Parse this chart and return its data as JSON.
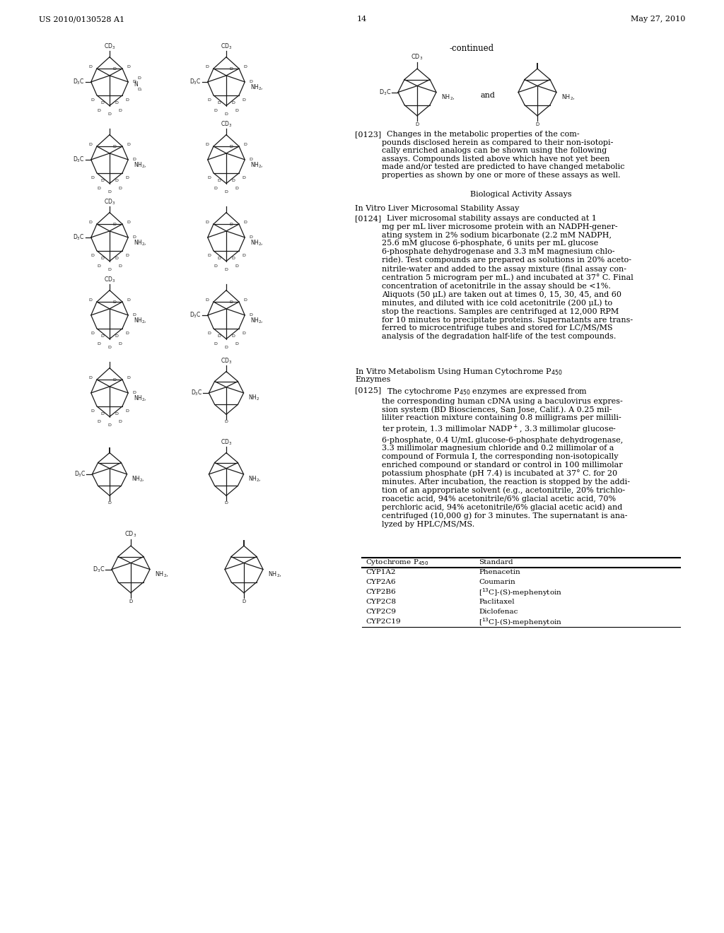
{
  "page_number": "14",
  "patent_number": "US 2010/0130528 A1",
  "patent_date": "May 27, 2010",
  "continued_label": "-continued",
  "background_color": "#ffffff",
  "text_color": "#000000",
  "table": {
    "col1_header": "Cytochrome P450",
    "col2_header": "Standard",
    "rows": [
      [
        "CYP1A2",
        "Phenacetin"
      ],
      [
        "CYP2A6",
        "Coumarin"
      ],
      [
        "CYP2B6",
        "[13C]-(S)-mephenytoin"
      ],
      [
        "CYP2C8",
        "Paclitaxel"
      ],
      [
        "CYP2C9",
        "Diclofenac"
      ],
      [
        "CYP2C19",
        "[13C]-(S)-mephenytoin"
      ]
    ]
  }
}
